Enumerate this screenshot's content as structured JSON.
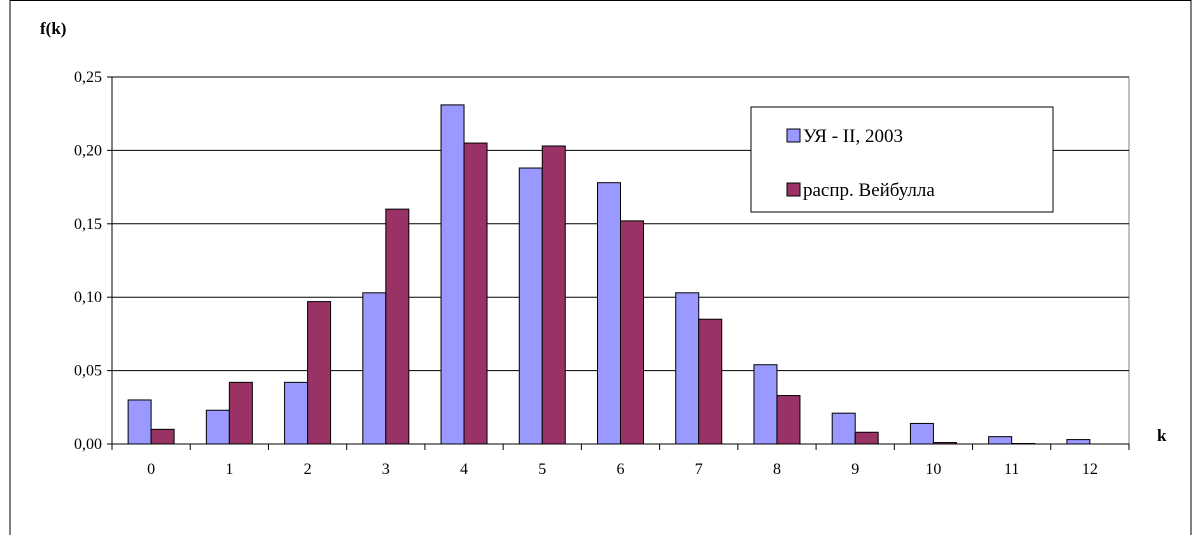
{
  "chart_data": {
    "type": "bar",
    "categories": [
      "0",
      "1",
      "2",
      "3",
      "4",
      "5",
      "6",
      "7",
      "8",
      "9",
      "10",
      "11",
      "12"
    ],
    "series": [
      {
        "name": "УЯ - II, 2003",
        "color": "#9999ff",
        "values": [
          0.03,
          0.023,
          0.042,
          0.103,
          0.231,
          0.188,
          0.178,
          0.103,
          0.054,
          0.021,
          0.014,
          0.005,
          0.003
        ]
      },
      {
        "name": "распр. Вейбулла",
        "color": "#993366",
        "values": [
          0.01,
          0.042,
          0.097,
          0.16,
          0.205,
          0.203,
          0.152,
          0.085,
          0.033,
          0.008,
          0.001,
          0.0003,
          null
        ]
      }
    ],
    "xlabel": "k",
    "ylabel": "f(k)",
    "ylim": [
      0,
      0.25
    ],
    "yticks": [
      "0,00",
      "0,05",
      "0,10",
      "0,15",
      "0,20",
      "0,25"
    ],
    "grid": "horizontal",
    "legend_position": "top-right"
  }
}
